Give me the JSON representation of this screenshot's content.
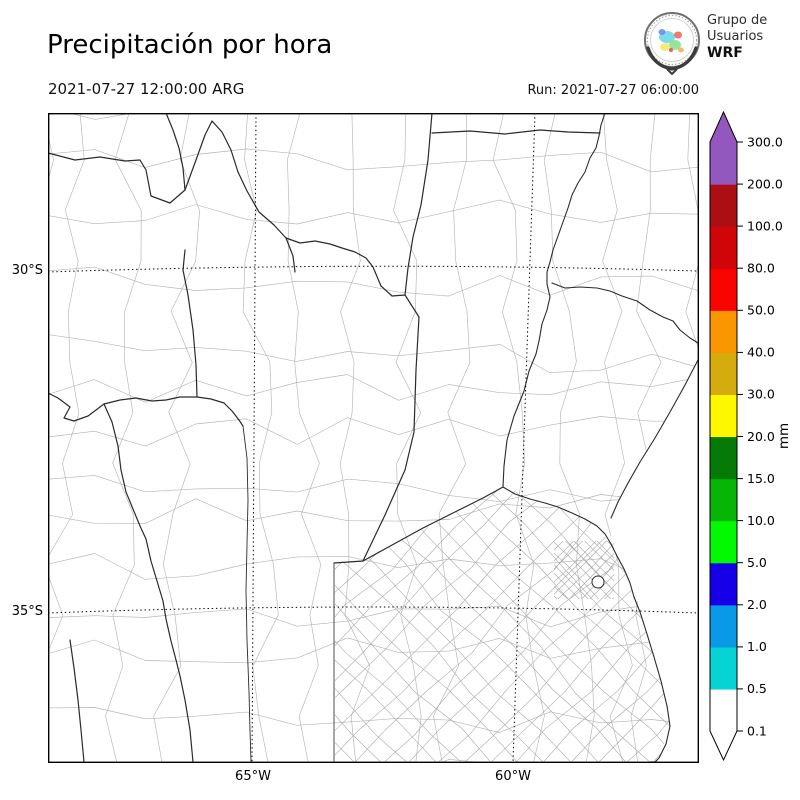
{
  "header": {
    "title": "Precipitación por hora",
    "valid_time": "2021-07-27 12:00:00 ARG",
    "run_label": "Run: 2021-07-27 06:00:00",
    "logo": {
      "line1": "Grupo de",
      "line2": "Usuarios",
      "line3": "WRF"
    }
  },
  "map": {
    "lat_labels": [
      "30°S",
      "35°S"
    ],
    "lon_labels": [
      "65°W",
      "60°W"
    ]
  },
  "colorbar": {
    "unit": "mm",
    "tick_labels_top_to_bottom": [
      "300.0",
      "200.0",
      "100.0",
      "80.0",
      "50.0",
      "40.0",
      "30.0",
      "20.0",
      "15.0",
      "10.0",
      "5.0",
      "2.0",
      "1.0",
      "0.5",
      "0.1"
    ]
  },
  "chart_data": {
    "type": "precipitation_map",
    "title": "Precipitación por hora",
    "valid_time": "2021-07-27 12:00:00 ARG",
    "run": "2021-07-27 06:00:00",
    "unit": "mm",
    "levels_mm": [
      0.1,
      0.5,
      1.0,
      2.0,
      5.0,
      10.0,
      15.0,
      20.0,
      30.0,
      40.0,
      50.0,
      80.0,
      100.0,
      200.0,
      300.0
    ],
    "segment_colors_low_to_high": [
      "#FFFFFF",
      "#06D3D3",
      "#0A99E6",
      "#1500E8",
      "#02F902",
      "#07B507",
      "#067A06",
      "#FDF800",
      "#D4AC0E",
      "#FA9600",
      "#FA0400",
      "#CF0508",
      "#AB0F13",
      "#9457BD"
    ],
    "over_arrow_color": "#9457BD",
    "under_arrow_color": "#FFFFFF",
    "x_axis_ticks": [
      "65°W",
      "60°W"
    ],
    "y_axis_ticks": [
      "30°S",
      "35°S"
    ],
    "field_shown": "hourly precipitation; entire domain below lowest contour (no shaded precipitation visible)"
  }
}
